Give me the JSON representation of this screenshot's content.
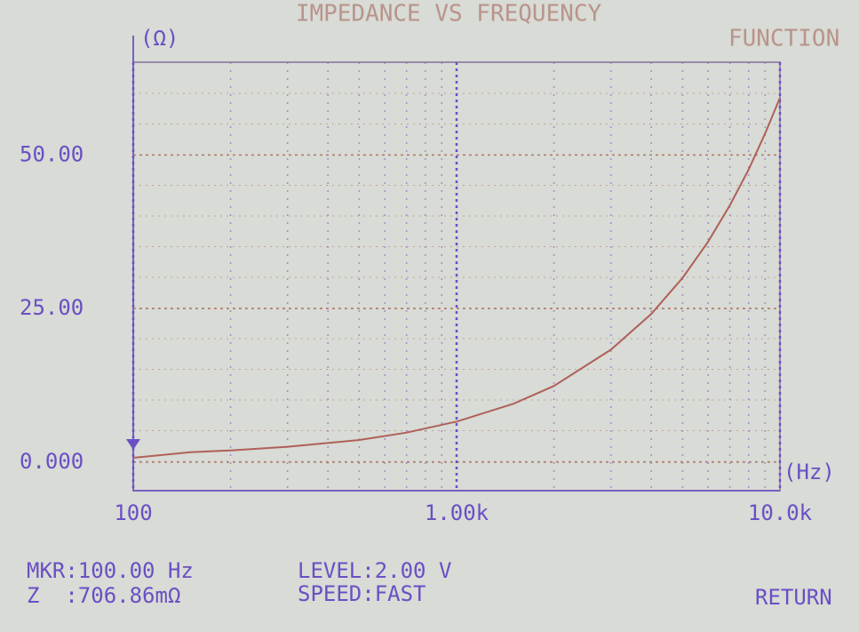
{
  "chart_data": {
    "type": "line",
    "title": "IMPEDANCE VS FREQUENCY",
    "y_label": "(Ω)",
    "x_label": "(Hz)",
    "function_label": "FUNCTION",
    "log_x": true,
    "grid": true,
    "xlim": [
      100,
      10000
    ],
    "xticks": [
      {
        "value": 100,
        "label": "100"
      },
      {
        "value": 1000,
        "label": "1.00k"
      },
      {
        "value": 10000,
        "label": "10.0k"
      }
    ],
    "ylim": [
      -4.65,
      65.1
    ],
    "yticks": [
      {
        "value": 0,
        "label": "0.000"
      },
      {
        "value": 25,
        "label": "25.00"
      },
      {
        "value": 50,
        "label": "50.00"
      }
    ],
    "x": [
      100,
      150,
      200,
      300,
      500,
      700,
      1000,
      1500,
      2000,
      3000,
      4000,
      5000,
      6000,
      7000,
      8000,
      9000,
      10000
    ],
    "series": [
      {
        "name": "Z",
        "color": "#b0605a",
        "values": [
          0.71,
          1.6,
          1.9,
          2.5,
          3.6,
          4.8,
          6.6,
          9.5,
          12.4,
          18.3,
          24.1,
          30.0,
          35.9,
          41.8,
          47.6,
          53.5,
          59.3
        ]
      }
    ]
  },
  "status": {
    "marker": "MKR:100.00 Hz",
    "impedance": "Z  :706.86mΩ",
    "level": "LEVEL:2.00 V",
    "speed": "SPEED:FAST",
    "return": "RETURN"
  }
}
